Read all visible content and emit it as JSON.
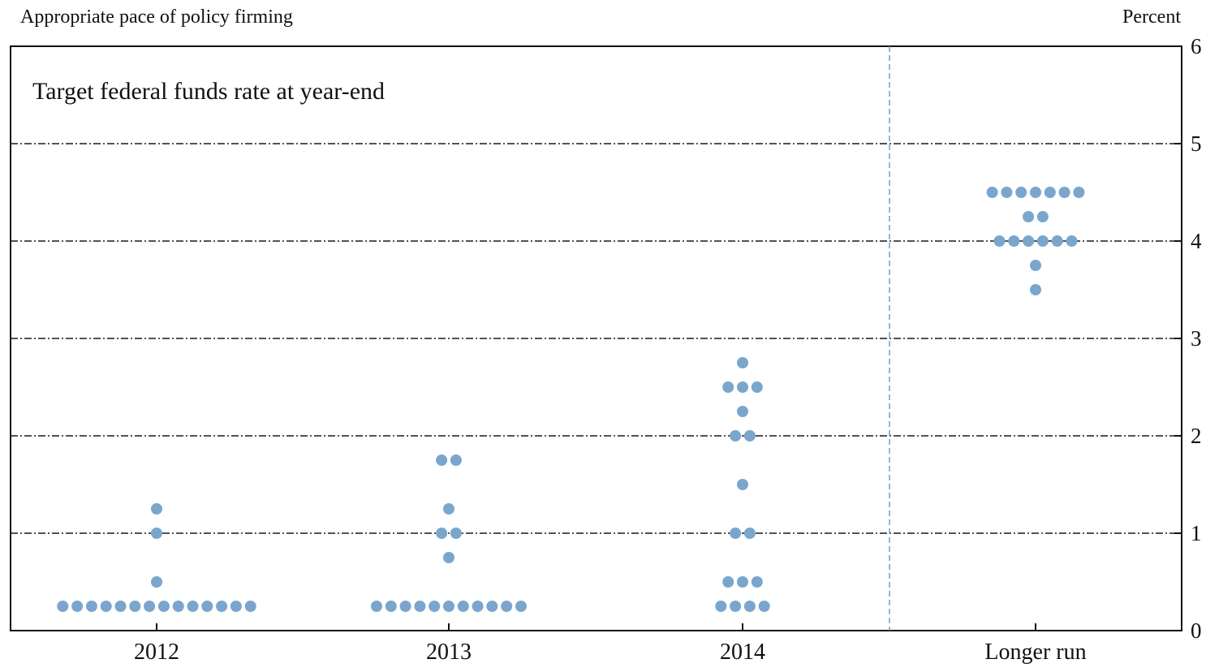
{
  "header": {
    "left_title": "Appropriate pace of policy firming",
    "right_unit": "Percent"
  },
  "chart_data": {
    "type": "scatter",
    "subtype": "dot-plot",
    "title": "Appropriate pace of policy firming",
    "annotation": "Target federal funds rate at year-end",
    "ylabel": "Percent",
    "ylim": [
      0,
      6
    ],
    "y_ticks": [
      0,
      1,
      2,
      3,
      4,
      5,
      6
    ],
    "grid": true,
    "categories": [
      "2012",
      "2013",
      "2014",
      "Longer run"
    ],
    "dot_color": "#7aa6cd",
    "divider_color": "#5a9ccc",
    "series": [
      {
        "category": "2012",
        "points": [
          {
            "y": 0.25,
            "count": 14
          },
          {
            "y": 0.5,
            "count": 1
          },
          {
            "y": 1.0,
            "count": 1
          },
          {
            "y": 1.25,
            "count": 1
          }
        ]
      },
      {
        "category": "2013",
        "points": [
          {
            "y": 0.25,
            "count": 11
          },
          {
            "y": 0.75,
            "count": 1
          },
          {
            "y": 1.0,
            "count": 2
          },
          {
            "y": 1.25,
            "count": 1
          },
          {
            "y": 1.75,
            "count": 2
          }
        ]
      },
      {
        "category": "2014",
        "points": [
          {
            "y": 0.25,
            "count": 4
          },
          {
            "y": 0.5,
            "count": 3
          },
          {
            "y": 1.0,
            "count": 2
          },
          {
            "y": 1.5,
            "count": 1
          },
          {
            "y": 2.0,
            "count": 2
          },
          {
            "y": 2.25,
            "count": 1
          },
          {
            "y": 2.5,
            "count": 3
          },
          {
            "y": 2.75,
            "count": 1
          }
        ]
      },
      {
        "category": "Longer run",
        "points": [
          {
            "y": 3.5,
            "count": 1
          },
          {
            "y": 3.75,
            "count": 1
          },
          {
            "y": 4.0,
            "count": 6
          },
          {
            "y": 4.25,
            "count": 2
          },
          {
            "y": 4.5,
            "count": 7
          }
        ]
      }
    ]
  }
}
